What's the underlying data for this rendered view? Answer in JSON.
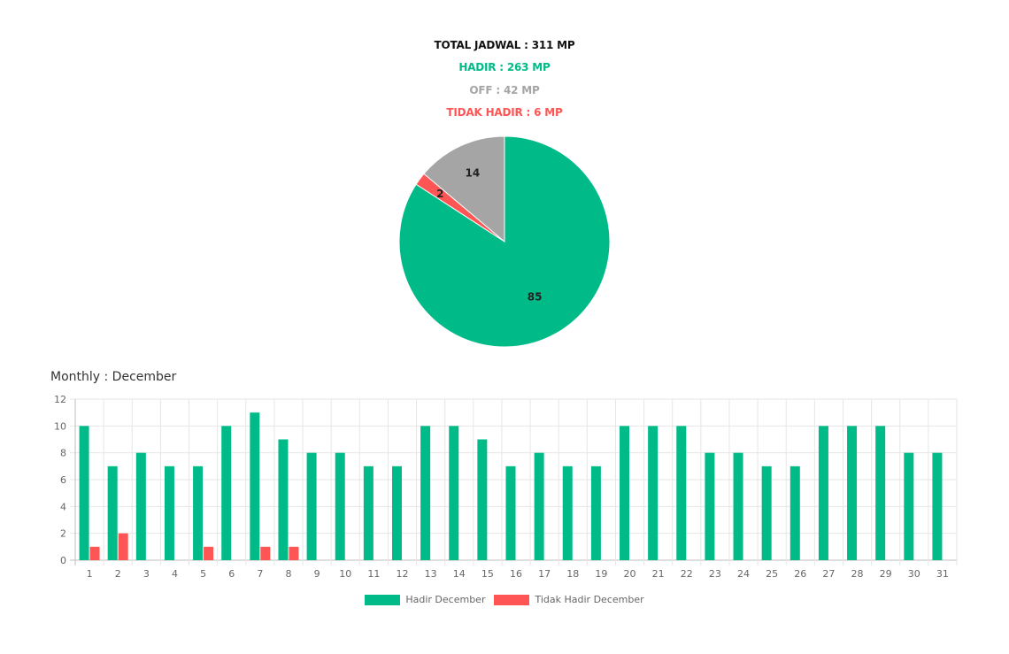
{
  "summary": {
    "total": "TOTAL JADWAL : 311 MP",
    "hadir": "HADIR : 263 MP",
    "off": "OFF : 42 MP",
    "tidak_hadir": "TIDAK HADIR : 6 MP"
  },
  "monthly_title": "Monthly : December",
  "colors": {
    "hadir": "#00bb88",
    "off": "#a5a5a5",
    "tidak_hadir": "#ff5555"
  },
  "chart_data": [
    {
      "type": "pie",
      "title": "",
      "labels": [
        "HADIR",
        "TIDAK HADIR",
        "OFF"
      ],
      "values": [
        85,
        2,
        14
      ],
      "colors": [
        "#00bb88",
        "#ff5555",
        "#a5a5a5"
      ],
      "data_labels": [
        "85",
        "2",
        "14"
      ]
    },
    {
      "type": "bar",
      "title": "",
      "xlabel": "",
      "ylabel": "",
      "categories": [
        "1",
        "2",
        "3",
        "4",
        "5",
        "6",
        "7",
        "8",
        "9",
        "10",
        "11",
        "12",
        "13",
        "14",
        "15",
        "16",
        "17",
        "18",
        "19",
        "20",
        "21",
        "22",
        "23",
        "24",
        "25",
        "26",
        "27",
        "28",
        "29",
        "30",
        "31"
      ],
      "series": [
        {
          "name": "Hadir December",
          "color": "#00bb88",
          "values": [
            10,
            7,
            8,
            7,
            7,
            10,
            11,
            9,
            8,
            8,
            7,
            7,
            10,
            10,
            9,
            7,
            8,
            7,
            7,
            10,
            10,
            10,
            8,
            8,
            7,
            7,
            10,
            10,
            10,
            8,
            8
          ]
        },
        {
          "name": "Tidak Hadir December",
          "color": "#ff5555",
          "values": [
            1,
            2,
            0,
            0,
            1,
            0,
            1,
            1,
            0,
            0,
            0,
            0,
            0,
            0,
            0,
            0,
            0,
            0,
            0,
            0,
            0,
            0,
            0,
            0,
            0,
            0,
            0,
            0,
            0,
            0,
            0
          ]
        }
      ],
      "ylim": [
        0,
        12
      ],
      "yticks": [
        0,
        2,
        4,
        6,
        8,
        10,
        12
      ],
      "grid": true,
      "legend": "bottom"
    }
  ]
}
